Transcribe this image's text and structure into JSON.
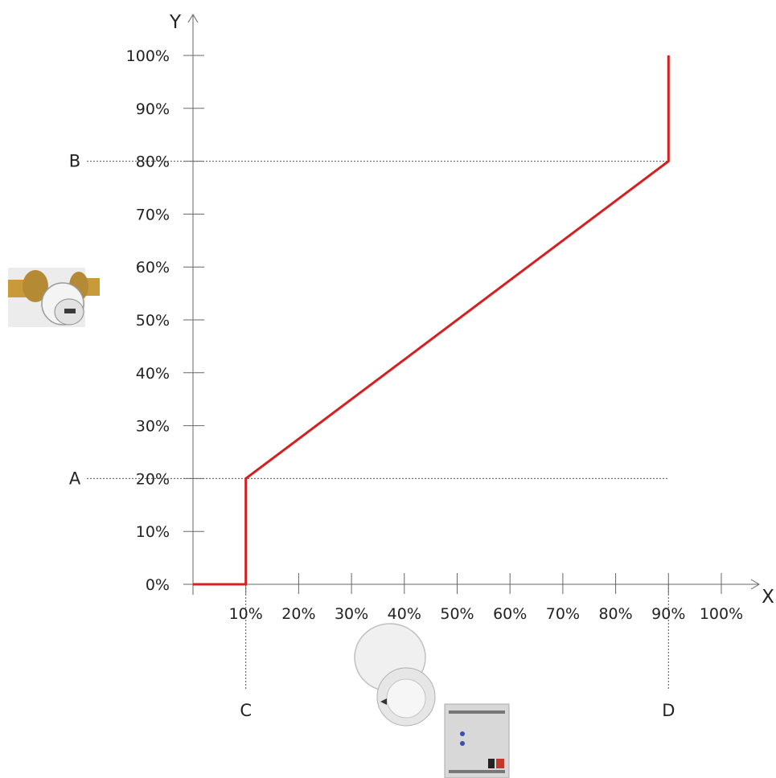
{
  "chart_data": {
    "type": "line",
    "title": "",
    "xlabel": "X",
    "ylabel": "Y",
    "xlim": [
      0,
      100
    ],
    "ylim": [
      0,
      100
    ],
    "grid": false,
    "xticks": [
      "10%",
      "20%",
      "30%",
      "40%",
      "50%",
      "60%",
      "70%",
      "80%",
      "90%",
      "100%"
    ],
    "xtick_values": [
      10,
      20,
      30,
      40,
      50,
      60,
      70,
      80,
      90,
      100
    ],
    "yticks": [
      "0%",
      "10%",
      "20%",
      "30%",
      "40%",
      "50%",
      "60%",
      "70%",
      "80%",
      "90%",
      "100%"
    ],
    "ytick_values": [
      0,
      10,
      20,
      30,
      40,
      50,
      60,
      70,
      80,
      90,
      100
    ],
    "series": [
      {
        "color": "#d42020",
        "points": [
          [
            0,
            0
          ],
          [
            10,
            0
          ],
          [
            10,
            20
          ],
          [
            90,
            80
          ],
          [
            90,
            100
          ]
        ]
      }
    ],
    "reference_lines": [
      {
        "axis": "y",
        "value": 80,
        "label": "B"
      },
      {
        "axis": "y",
        "value": 20,
        "label": "A"
      },
      {
        "axis": "x",
        "value": 10,
        "label": "C"
      },
      {
        "axis": "x",
        "value": 90,
        "label": "D"
      }
    ]
  },
  "illustrations": {
    "valve": "radiator-valve-actuator-image",
    "controller": "room-thermostat-and-actuator-module-image"
  }
}
